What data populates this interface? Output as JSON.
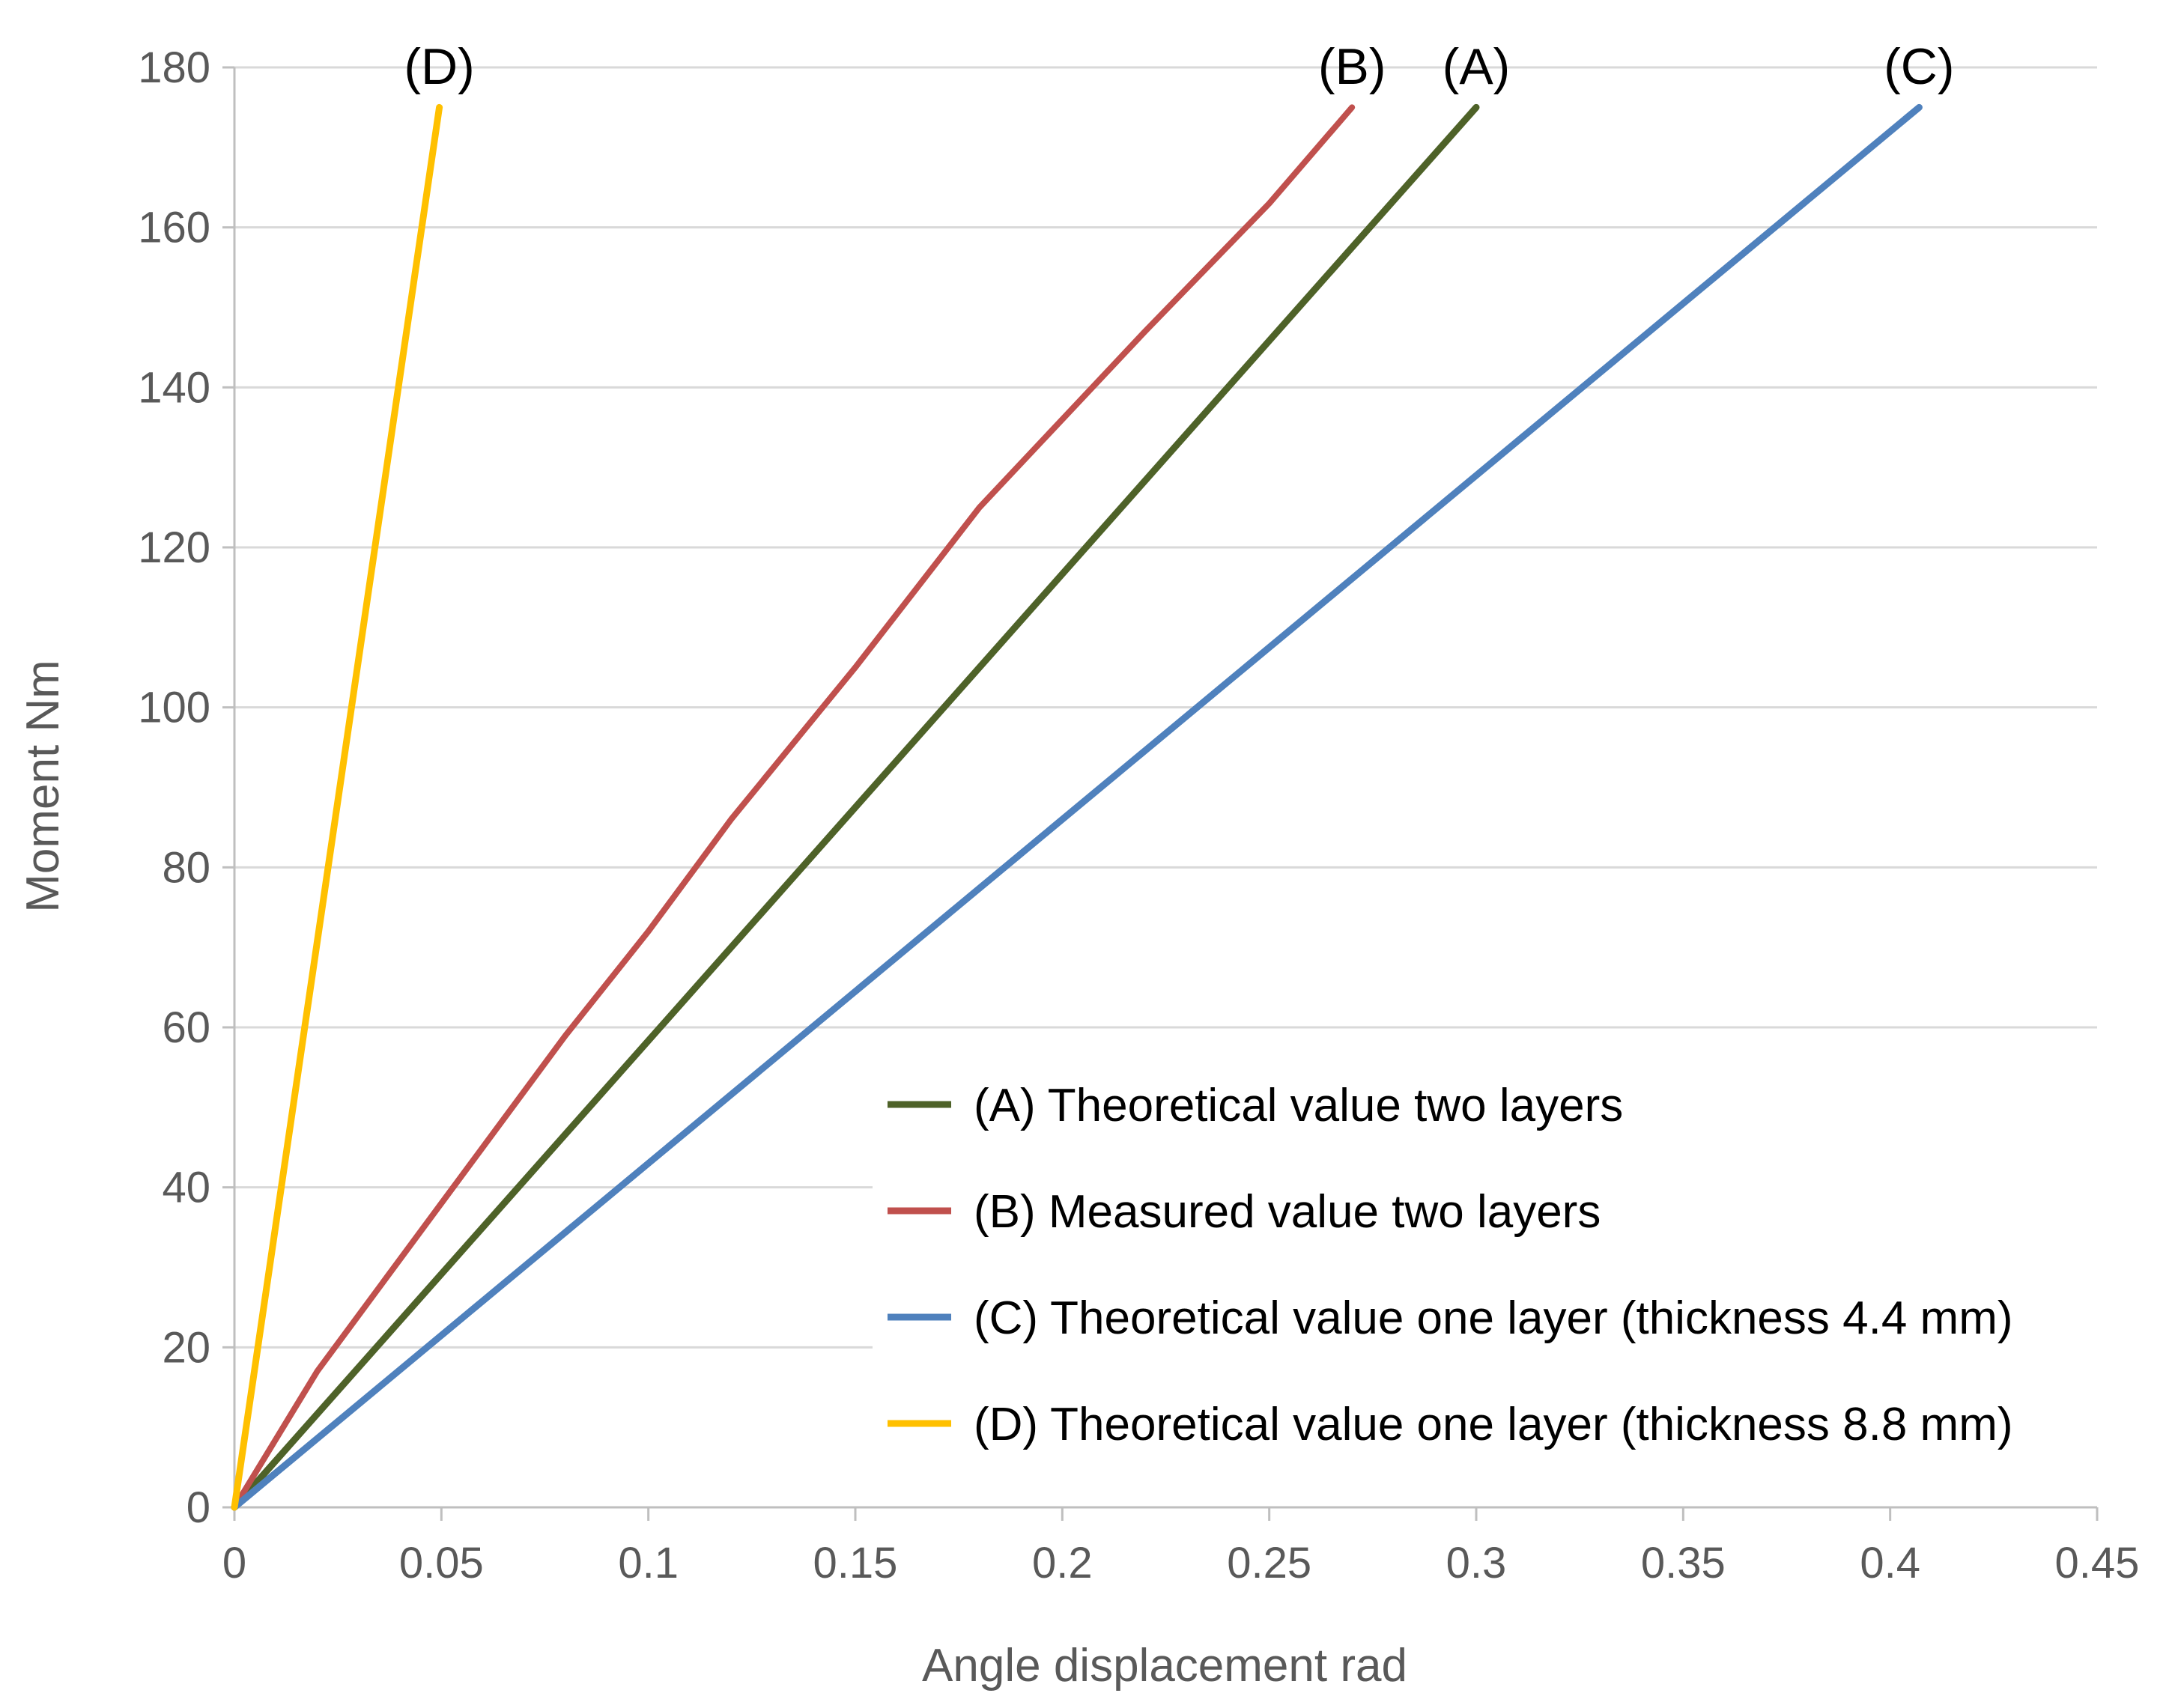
{
  "chart_data": {
    "type": "line",
    "xlabel": "Angle displacement rad",
    "ylabel": "Moment Nm",
    "xlim": [
      0,
      0.45
    ],
    "ylim": [
      0,
      180
    ],
    "xticks": [
      0,
      0.05,
      0.1,
      0.15,
      0.2,
      0.25,
      0.3,
      0.35,
      0.4,
      0.45
    ],
    "xtick_labels": [
      "0",
      "0.05",
      "0.1",
      "0.15",
      "0.2",
      "0.25",
      "0.3",
      "0.35",
      "0.4",
      "0.45"
    ],
    "yticks": [
      0,
      20,
      40,
      60,
      80,
      100,
      120,
      140,
      160,
      180
    ],
    "ytick_labels": [
      "0",
      "20",
      "40",
      "60",
      "80",
      "100",
      "120",
      "140",
      "160",
      "180"
    ],
    "grid": "horizontal",
    "legend_position": "bottom-right",
    "series": [
      {
        "id": "A",
        "name": "(A) Theoretical value two layers",
        "end_label": "(A)",
        "color": "#4e6228",
        "x": [
          0,
          0.3
        ],
        "y": [
          0,
          175
        ]
      },
      {
        "id": "B",
        "name": "(B) Measured value two layers",
        "end_label": "(B)",
        "color": "#c0504d",
        "x": [
          0,
          0.02,
          0.05,
          0.08,
          0.1,
          0.12,
          0.15,
          0.18,
          0.2,
          0.22,
          0.25,
          0.27
        ],
        "y": [
          0,
          17,
          38,
          59,
          72,
          86,
          105,
          125,
          136,
          147,
          163,
          175
        ]
      },
      {
        "id": "C",
        "name": "(C) Theoretical value one layer (thickness 4.4 mm)",
        "end_label": "(C)",
        "color": "#4f81bd",
        "x": [
          0,
          0.407
        ],
        "y": [
          0,
          175
        ]
      },
      {
        "id": "D",
        "name": "(D) Theoretical value one layer (thickness 8.8 mm)",
        "end_label": "(D)",
        "color": "#ffc000",
        "x": [
          0,
          0.0495
        ],
        "y": [
          0,
          175
        ]
      }
    ]
  }
}
